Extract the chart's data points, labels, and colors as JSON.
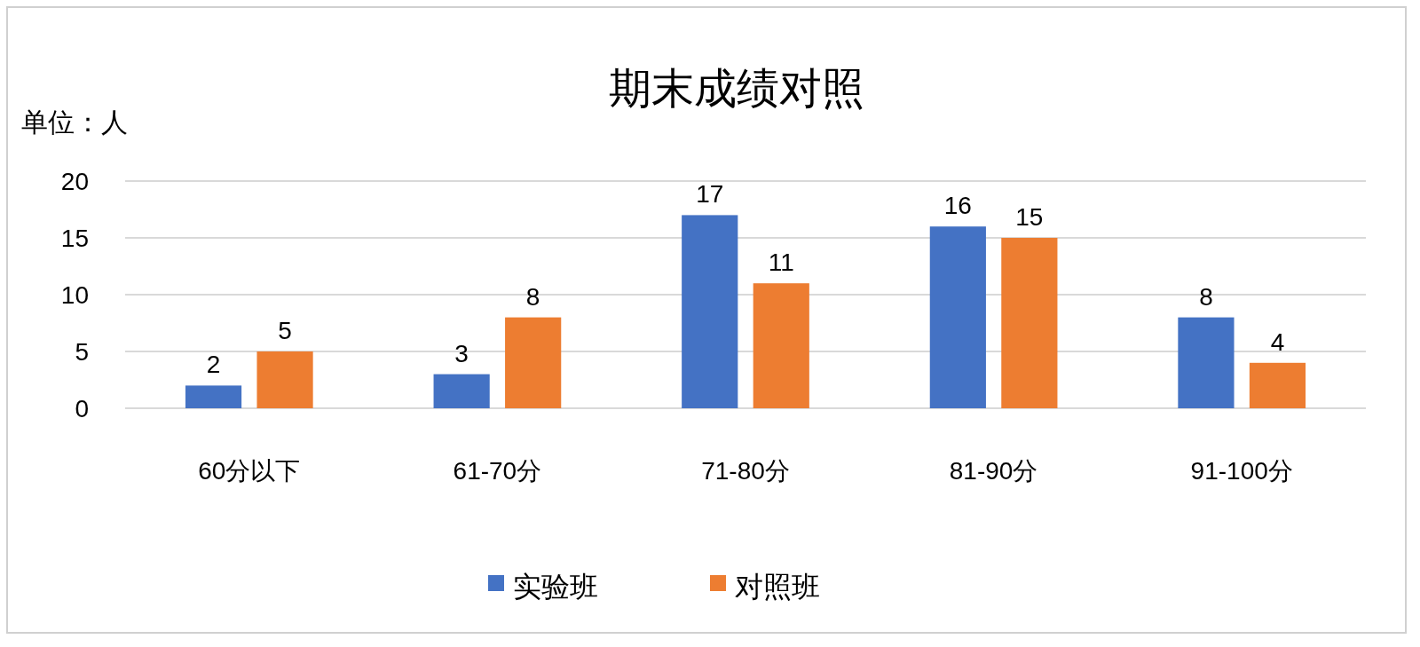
{
  "chart_data": {
    "type": "bar",
    "title": "期末成绩对照",
    "ylabel": "单位：人",
    "categories": [
      "60分以下",
      "61-70分",
      "71-80分",
      "81-90分",
      "91-100分"
    ],
    "series": [
      {
        "name": "实验班",
        "color": "#4472c4",
        "values": [
          2,
          3,
          17,
          16,
          8
        ]
      },
      {
        "name": "对照班",
        "color": "#ed7d31",
        "values": [
          5,
          8,
          11,
          15,
          4
        ]
      }
    ],
    "ylim": [
      0,
      20
    ],
    "yticks": [
      0,
      5,
      10,
      15,
      20
    ],
    "grid": "y",
    "legend": "bottom",
    "data_labels": true
  }
}
